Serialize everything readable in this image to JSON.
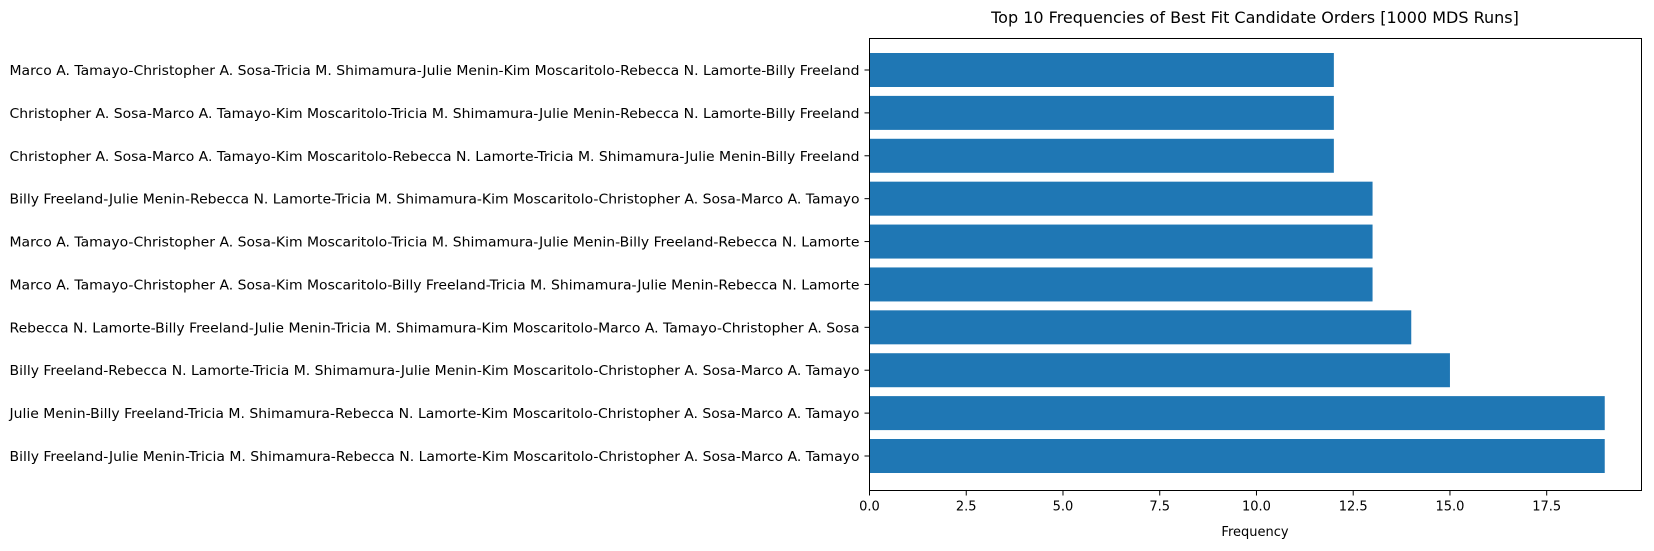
{
  "chart_data": {
    "type": "bar",
    "orientation": "horizontal",
    "title": "Top 10 Frequencies of Best Fit Candidate Orders [1000 MDS Runs]",
    "xlabel": "Frequency",
    "ylabel": "",
    "xlim": [
      0,
      19.95
    ],
    "xticks": [
      0.0,
      2.5,
      5.0,
      7.5,
      10.0,
      12.5,
      15.0,
      17.5
    ],
    "xtick_labels": [
      "0.0",
      "2.5",
      "5.0",
      "7.5",
      "10.0",
      "12.5",
      "15.0",
      "17.5"
    ],
    "grid": false,
    "bar_color": "#1f77b4",
    "categories": [
      "Billy Freeland-Julie Menin-Tricia M. Shimamura-Rebecca N. Lamorte-Kim Moscaritolo-Christopher  A. Sosa-Marco A. Tamayo",
      "Julie Menin-Billy Freeland-Tricia M. Shimamura-Rebecca N. Lamorte-Kim Moscaritolo-Christopher  A. Sosa-Marco A. Tamayo",
      "Billy Freeland-Rebecca N. Lamorte-Tricia M. Shimamura-Julie Menin-Kim Moscaritolo-Christopher  A. Sosa-Marco A. Tamayo",
      "Rebecca N. Lamorte-Billy Freeland-Julie Menin-Tricia M. Shimamura-Kim Moscaritolo-Marco A. Tamayo-Christopher  A. Sosa",
      "Marco A. Tamayo-Christopher  A. Sosa-Kim Moscaritolo-Billy Freeland-Tricia M. Shimamura-Julie Menin-Rebecca N. Lamorte",
      "Marco A. Tamayo-Christopher  A. Sosa-Kim Moscaritolo-Tricia M. Shimamura-Julie Menin-Billy Freeland-Rebecca N. Lamorte",
      "Billy Freeland-Julie Menin-Rebecca N. Lamorte-Tricia M. Shimamura-Kim Moscaritolo-Christopher  A. Sosa-Marco A. Tamayo",
      "Christopher  A. Sosa-Marco A. Tamayo-Kim Moscaritolo-Rebecca N. Lamorte-Tricia M. Shimamura-Julie Menin-Billy Freeland",
      "Christopher  A. Sosa-Marco A. Tamayo-Kim Moscaritolo-Tricia M. Shimamura-Julie Menin-Rebecca N. Lamorte-Billy Freeland",
      "Marco A. Tamayo-Christopher  A. Sosa-Tricia M. Shimamura-Julie Menin-Kim Moscaritolo-Rebecca N. Lamorte-Billy Freeland"
    ],
    "values": [
      19,
      19,
      15,
      14,
      13,
      13,
      13,
      12,
      12,
      12
    ]
  }
}
